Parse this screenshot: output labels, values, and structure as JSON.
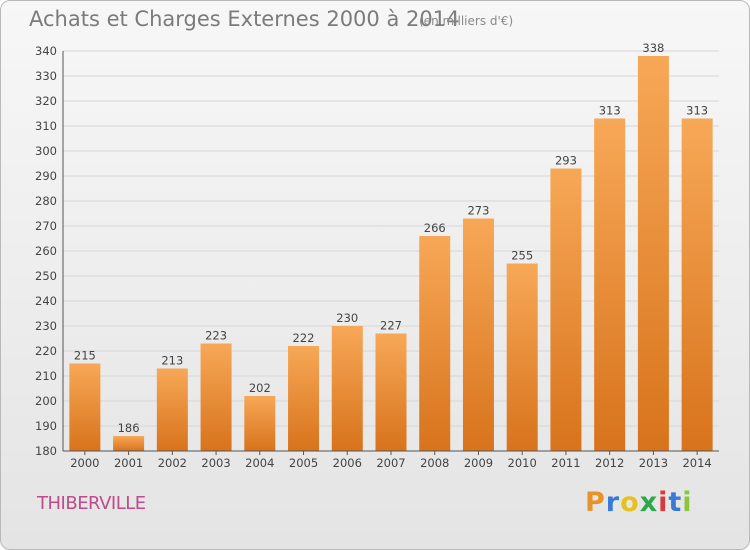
{
  "title": "Achats et Charges Externes 2000 à 2014",
  "subtitle": "(en milliers d'€)",
  "commune": "THIBERVILLE",
  "logo": {
    "letters": [
      "P",
      "r",
      "o",
      "x",
      "i",
      "t",
      "i"
    ],
    "colors": [
      "#e8932a",
      "#3a7ad6",
      "#e8c21c",
      "#2aa84a",
      "#d63a3a",
      "#3a7ad6",
      "#8cc63a"
    ]
  },
  "colors": {
    "bar_top": "#f7a857",
    "bar_bottom": "#d8731c",
    "grid": "#d6d6d6",
    "axis": "#555555"
  },
  "chart_data": {
    "type": "bar",
    "title": "Achats et Charges Externes 2000 à 2014",
    "subtitle": "(en milliers d'€)",
    "categories": [
      "2000",
      "2001",
      "2002",
      "2003",
      "2004",
      "2005",
      "2006",
      "2007",
      "2008",
      "2009",
      "2010",
      "2011",
      "2012",
      "2013",
      "2014"
    ],
    "values": [
      215,
      186,
      213,
      223,
      202,
      222,
      230,
      227,
      266,
      273,
      255,
      293,
      313,
      338,
      313
    ],
    "ylim": [
      180,
      340
    ],
    "yticks": [
      180,
      190,
      200,
      210,
      220,
      230,
      240,
      250,
      260,
      270,
      280,
      290,
      300,
      310,
      320,
      330,
      340
    ],
    "grid": true
  }
}
